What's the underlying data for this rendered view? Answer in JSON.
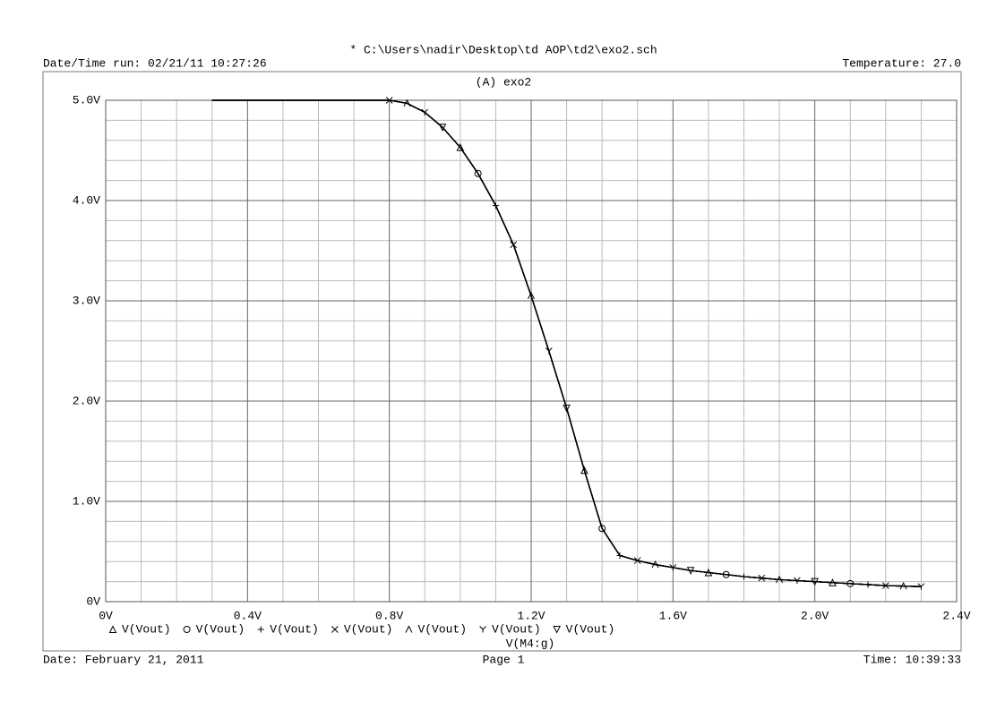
{
  "chart_data": {
    "type": "line",
    "file_title": "* C:\\Users\\nadir\\Desktop\\td AOP\\td2\\exo2.sch",
    "run_time": "Date/Time run: 02/21/11 10:27:26",
    "temperature": "Temperature: 27.0",
    "title": "(A) exo2",
    "xlabel": "V(M4:g)",
    "footer_date": "Date: February 21, 2011",
    "footer_page": "Page 1",
    "footer_time": "Time: 10:39:33",
    "x": [
      0.3,
      0.35,
      0.4,
      0.45,
      0.5,
      0.55,
      0.6,
      0.65,
      0.7,
      0.75,
      0.8,
      0.85,
      0.9,
      0.95,
      1.0,
      1.05,
      1.1,
      1.15,
      1.2,
      1.25,
      1.3,
      1.35,
      1.4,
      1.45,
      1.5,
      1.55,
      1.6,
      1.65,
      1.7,
      1.75,
      1.8,
      1.85,
      1.9,
      1.95,
      2.0,
      2.05,
      2.1,
      2.15,
      2.2,
      2.25,
      2.3
    ],
    "series": [
      {
        "name": "V(Vout)",
        "color": "#000000",
        "marker": "triangle",
        "values": [
          5,
          5,
          5,
          5,
          5,
          5,
          5,
          5,
          5,
          5,
          5,
          4.97,
          4.88,
          4.73,
          4.53,
          4.27,
          3.95,
          3.56,
          3.05,
          2.5,
          1.93,
          1.31,
          0.73,
          0.46,
          0.41,
          0.37,
          0.34,
          0.31,
          0.29,
          0.27,
          0.25,
          0.235,
          0.22,
          0.21,
          0.2,
          0.19,
          0.18,
          0.17,
          0.16,
          0.155,
          0.15
        ]
      },
      {
        "name": "V(Vout)",
        "color": "#000000",
        "marker": "circle",
        "values": [
          5,
          5,
          5,
          5,
          5,
          5,
          5,
          5,
          5,
          5,
          5,
          4.97,
          4.88,
          4.73,
          4.53,
          4.27,
          3.95,
          3.56,
          3.05,
          2.5,
          1.93,
          1.31,
          0.73,
          0.46,
          0.41,
          0.37,
          0.34,
          0.31,
          0.29,
          0.27,
          0.25,
          0.235,
          0.22,
          0.21,
          0.2,
          0.19,
          0.18,
          0.17,
          0.16,
          0.155,
          0.15
        ]
      },
      {
        "name": "V(Vout)",
        "color": "#000000",
        "marker": "plus",
        "values": [
          5,
          5,
          5,
          5,
          5,
          5,
          5,
          5,
          5,
          5,
          5,
          4.97,
          4.88,
          4.73,
          4.53,
          4.27,
          3.95,
          3.56,
          3.05,
          2.5,
          1.93,
          1.31,
          0.73,
          0.46,
          0.41,
          0.37,
          0.34,
          0.31,
          0.29,
          0.27,
          0.25,
          0.235,
          0.22,
          0.21,
          0.2,
          0.19,
          0.18,
          0.17,
          0.16,
          0.155,
          0.15
        ]
      },
      {
        "name": "V(Vout)",
        "color": "#000000",
        "marker": "cross",
        "values": [
          5,
          5,
          5,
          5,
          5,
          5,
          5,
          5,
          5,
          5,
          5,
          4.97,
          4.88,
          4.73,
          4.53,
          4.27,
          3.95,
          3.56,
          3.05,
          2.5,
          1.93,
          1.31,
          0.73,
          0.46,
          0.41,
          0.37,
          0.34,
          0.31,
          0.29,
          0.27,
          0.25,
          0.235,
          0.22,
          0.21,
          0.2,
          0.19,
          0.18,
          0.17,
          0.16,
          0.155,
          0.15
        ]
      },
      {
        "name": "V(Vout)",
        "color": "#000000",
        "marker": "lambda",
        "values": [
          5,
          5,
          5,
          5,
          5,
          5,
          5,
          5,
          5,
          5,
          5,
          4.97,
          4.88,
          4.73,
          4.53,
          4.27,
          3.95,
          3.56,
          3.05,
          2.5,
          1.93,
          1.31,
          0.73,
          0.46,
          0.41,
          0.37,
          0.34,
          0.31,
          0.29,
          0.27,
          0.25,
          0.235,
          0.22,
          0.21,
          0.2,
          0.19,
          0.18,
          0.17,
          0.16,
          0.155,
          0.15
        ]
      },
      {
        "name": "V(Vout)",
        "color": "#000000",
        "marker": "wye",
        "values": [
          5,
          5,
          5,
          5,
          5,
          5,
          5,
          5,
          5,
          5,
          5,
          4.97,
          4.88,
          4.73,
          4.53,
          4.27,
          3.95,
          3.56,
          3.05,
          2.5,
          1.93,
          1.31,
          0.73,
          0.46,
          0.41,
          0.37,
          0.34,
          0.31,
          0.29,
          0.27,
          0.25,
          0.235,
          0.22,
          0.21,
          0.2,
          0.19,
          0.18,
          0.17,
          0.16,
          0.155,
          0.15
        ]
      },
      {
        "name": "V(Vout)",
        "color": "#000000",
        "marker": "down-triangle",
        "values": [
          5,
          5,
          5,
          5,
          5,
          5,
          5,
          5,
          5,
          5,
          5,
          4.97,
          4.88,
          4.73,
          4.53,
          4.27,
          3.95,
          3.56,
          3.05,
          2.5,
          1.93,
          1.31,
          0.73,
          0.46,
          0.41,
          0.37,
          0.34,
          0.31,
          0.29,
          0.27,
          0.25,
          0.235,
          0.22,
          0.21,
          0.2,
          0.19,
          0.18,
          0.17,
          0.16,
          0.155,
          0.15
        ]
      }
    ],
    "xlim": [
      0,
      2.4
    ],
    "xticks": [
      {
        "value": 0,
        "label": "0V"
      },
      {
        "value": 0.4,
        "label": "0.4V"
      },
      {
        "value": 0.8,
        "label": "0.8V"
      },
      {
        "value": 1.2,
        "label": "1.2V"
      },
      {
        "value": 1.6,
        "label": "1.6V"
      },
      {
        "value": 2.0,
        "label": "2.0V"
      },
      {
        "value": 2.4,
        "label": "2.4V"
      }
    ],
    "ylim": [
      0,
      5
    ],
    "yticks": [
      {
        "value": 0,
        "label": "0V"
      },
      {
        "value": 1,
        "label": "1.0V"
      },
      {
        "value": 2,
        "label": "2.0V"
      },
      {
        "value": 3,
        "label": "3.0V"
      },
      {
        "value": 4,
        "label": "4.0V"
      },
      {
        "value": 5,
        "label": "5.0V"
      }
    ],
    "grid": true
  }
}
